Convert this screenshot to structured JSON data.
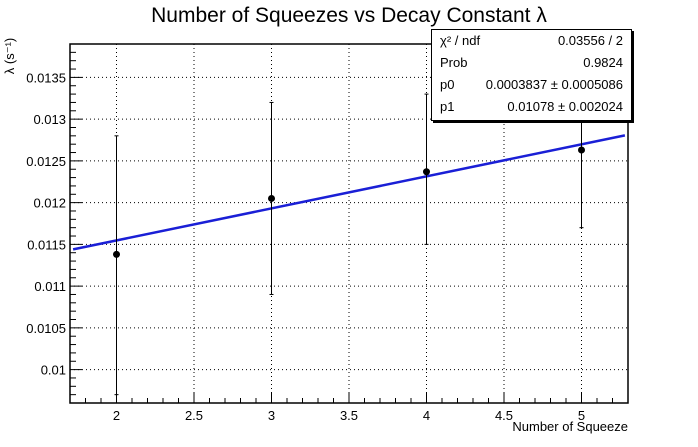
{
  "chart_data": {
    "type": "scatter",
    "title": "Number of Squeezes vs Decay Constant λ",
    "xlabel": "Number of Squeeze",
    "ylabel": "λ (s⁻¹)",
    "xlim": [
      1.7,
      5.3
    ],
    "ylim": [
      0.0096,
      0.0139
    ],
    "x_ticks": [
      "2",
      "2.5",
      "3",
      "3.5",
      "4",
      "4.5",
      "5"
    ],
    "y_ticks": [
      "0.01",
      "0.0105",
      "0.011",
      "0.0115",
      "0.012",
      "0.0125",
      "0.013",
      "0.0135"
    ],
    "grid": true,
    "points": [
      {
        "x": 2,
        "y": 0.01138,
        "yerr_low": 0.0097,
        "yerr_high": 0.0128
      },
      {
        "x": 3,
        "y": 0.01205,
        "yerr_low": 0.0109,
        "yerr_high": 0.0132
      },
      {
        "x": 4,
        "y": 0.01237,
        "yerr_low": 0.0115,
        "yerr_high": 0.0133
      },
      {
        "x": 5,
        "y": 0.01263,
        "yerr_low": 0.0117,
        "yerr_high": 0.0134
      }
    ],
    "fit_line": {
      "type": "linear",
      "p0": 0.0003837,
      "p1": 0.01078,
      "color": "#1a1fd6"
    }
  },
  "stats_box": {
    "rows": [
      {
        "key": "χ² / ndf",
        "value": "0.03556 / 2"
      },
      {
        "key": "Prob",
        "value": "0.9824"
      },
      {
        "key": "p0",
        "value": "0.0003837 ± 0.0005086"
      },
      {
        "key": "p1",
        "value": "0.01078 ± 0.002024"
      }
    ]
  }
}
